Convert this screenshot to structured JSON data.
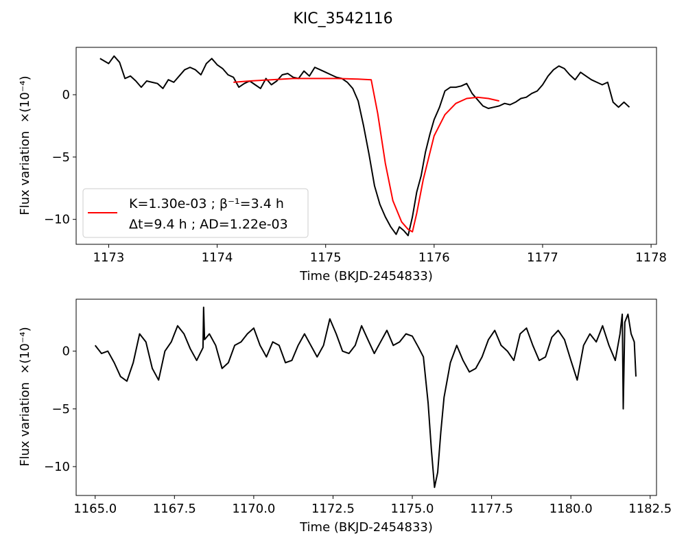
{
  "chart_data": [
    {
      "type": "line",
      "title": "KIC_3542116",
      "xlabel": "Time (BKJD-2454833)",
      "ylabel": "Flux variation",
      "ylabel_unit": "×(10⁻⁴)",
      "xlim": [
        1172.7,
        1178.05
      ],
      "ylim": [
        -12,
        3.8
      ],
      "xticks": [
        1173,
        1174,
        1175,
        1176,
        1177,
        1178
      ],
      "xtick_labels": [
        "1173",
        "1174",
        "1175",
        "1176",
        "1177",
        "1178"
      ],
      "yticks": [
        0,
        -5,
        -10
      ],
      "ytick_labels": [
        "0",
        "−5",
        "−10"
      ],
      "grid": false,
      "legend": {
        "placement": "lower-left",
        "line1": "K=1.30e-03 ; β⁻¹=3.4 h",
        "line2": "Δt=9.4 h ; AD=1.22e-03"
      },
      "series": [
        {
          "color": "#000000",
          "x": [
            1172.92,
            1173.0,
            1173.05,
            1173.1,
            1173.15,
            1173.2,
            1173.25,
            1173.3,
            1173.35,
            1173.4,
            1173.45,
            1173.5,
            1173.55,
            1173.6,
            1173.65,
            1173.7,
            1173.75,
            1173.8,
            1173.85,
            1173.9,
            1173.95,
            1174.0,
            1174.05,
            1174.1,
            1174.15,
            1174.2,
            1174.25,
            1174.3,
            1174.35,
            1174.4,
            1174.45,
            1174.5,
            1174.55,
            1174.6,
            1174.65,
            1174.7,
            1174.75,
            1174.8,
            1174.85,
            1174.9,
            1174.95,
            1175.0,
            1175.05,
            1175.1,
            1175.15,
            1175.2,
            1175.25,
            1175.3,
            1175.35,
            1175.4,
            1175.45,
            1175.5,
            1175.55,
            1175.6,
            1175.65,
            1175.68,
            1175.72,
            1175.76,
            1175.8,
            1175.84,
            1175.88,
            1175.92,
            1175.96,
            1176.0,
            1176.05,
            1176.1,
            1176.15,
            1176.2,
            1176.25,
            1176.3,
            1176.35,
            1176.4,
            1176.45,
            1176.5,
            1176.55,
            1176.6,
            1176.65,
            1176.7,
            1176.75,
            1176.8,
            1176.85,
            1176.9,
            1176.95,
            1177.0,
            1177.05,
            1177.1,
            1177.15,
            1177.2,
            1177.25,
            1177.3,
            1177.35,
            1177.4,
            1177.45,
            1177.5,
            1177.55,
            1177.6,
            1177.65,
            1177.7,
            1177.75,
            1177.8
          ],
          "y": [
            2.9,
            2.5,
            3.1,
            2.6,
            1.3,
            1.5,
            1.1,
            0.6,
            1.1,
            1.0,
            0.9,
            0.5,
            1.2,
            1.0,
            1.5,
            2.0,
            2.2,
            2.0,
            1.6,
            2.5,
            2.9,
            2.4,
            2.1,
            1.6,
            1.4,
            0.6,
            0.9,
            1.1,
            0.8,
            0.5,
            1.3,
            0.8,
            1.1,
            1.6,
            1.7,
            1.4,
            1.3,
            1.9,
            1.5,
            2.2,
            2.0,
            1.8,
            1.6,
            1.4,
            1.3,
            1.0,
            0.5,
            -0.5,
            -2.5,
            -4.8,
            -7.3,
            -8.8,
            -9.8,
            -10.6,
            -11.2,
            -10.6,
            -10.9,
            -11.3,
            -9.8,
            -7.8,
            -6.5,
            -4.6,
            -3.2,
            -2.0,
            -1.0,
            0.3,
            0.6,
            0.6,
            0.7,
            0.9,
            0.1,
            -0.4,
            -0.9,
            -1.1,
            -1.0,
            -0.9,
            -0.7,
            -0.8,
            -0.6,
            -0.3,
            -0.2,
            0.1,
            0.3,
            0.8,
            1.5,
            2.0,
            2.3,
            2.1,
            1.6,
            1.2,
            1.8,
            1.5,
            1.2,
            1.0,
            0.8,
            1.0,
            -0.6,
            -1.0,
            -0.6,
            -1.0
          ]
        },
        {
          "color": "#ff0000",
          "x": [
            1174.15,
            1174.3,
            1174.5,
            1174.7,
            1174.9,
            1175.1,
            1175.3,
            1175.42,
            1175.48,
            1175.55,
            1175.62,
            1175.7,
            1175.76,
            1175.8,
            1175.84,
            1175.9,
            1176.0,
            1176.1,
            1176.2,
            1176.3,
            1176.4,
            1176.5,
            1176.6
          ],
          "y": [
            1.0,
            1.1,
            1.2,
            1.3,
            1.3,
            1.3,
            1.25,
            1.2,
            -1.5,
            -5.5,
            -8.5,
            -10.2,
            -10.8,
            -11.0,
            -9.5,
            -6.8,
            -3.3,
            -1.6,
            -0.7,
            -0.3,
            -0.2,
            -0.3,
            -0.5
          ]
        }
      ]
    },
    {
      "type": "line",
      "xlabel": "Time (BKJD-2454833)",
      "ylabel": "Flux variation",
      "ylabel_unit": "×(10⁻⁴)",
      "xlim": [
        1164.4,
        1182.7
      ],
      "ylim": [
        -12.5,
        4.5
      ],
      "xticks": [
        1165.0,
        1167.5,
        1170.0,
        1172.5,
        1175.0,
        1177.5,
        1180.0,
        1182.5
      ],
      "xtick_labels": [
        "1165.0",
        "1167.5",
        "1170.0",
        "1172.5",
        "1175.0",
        "1177.5",
        "1180.0",
        "1182.5"
      ],
      "yticks": [
        0,
        -5,
        -10
      ],
      "ytick_labels": [
        "0",
        "−5",
        "−10"
      ],
      "grid": false,
      "series": [
        {
          "color": "#000000",
          "x": [
            1165.0,
            1165.2,
            1165.4,
            1165.6,
            1165.8,
            1166.0,
            1166.2,
            1166.4,
            1166.6,
            1166.8,
            1167.0,
            1167.2,
            1167.4,
            1167.6,
            1167.8,
            1168.0,
            1168.2,
            1168.4,
            1168.42,
            1168.45,
            1168.6,
            1168.8,
            1169.0,
            1169.2,
            1169.4,
            1169.6,
            1169.8,
            1170.0,
            1170.2,
            1170.4,
            1170.6,
            1170.8,
            1171.0,
            1171.2,
            1171.4,
            1171.6,
            1171.8,
            1172.0,
            1172.2,
            1172.4,
            1172.6,
            1172.8,
            1173.0,
            1173.2,
            1173.4,
            1173.6,
            1173.8,
            1174.0,
            1174.2,
            1174.4,
            1174.6,
            1174.8,
            1175.0,
            1175.2,
            1175.35,
            1175.5,
            1175.6,
            1175.7,
            1175.8,
            1175.9,
            1176.0,
            1176.1,
            1176.2,
            1176.4,
            1176.6,
            1176.8,
            1177.0,
            1177.2,
            1177.4,
            1177.6,
            1177.8,
            1178.0,
            1178.2,
            1178.4,
            1178.6,
            1178.8,
            1179.0,
            1179.2,
            1179.4,
            1179.6,
            1179.8,
            1180.0,
            1180.2,
            1180.4,
            1180.6,
            1180.8,
            1181.0,
            1181.2,
            1181.4,
            1181.55,
            1181.62,
            1181.65,
            1181.7,
            1181.8,
            1181.9,
            1182.0,
            1182.05
          ],
          "y": [
            0.5,
            -0.2,
            0.0,
            -1.0,
            -2.2,
            -2.6,
            -1.0,
            1.5,
            0.8,
            -1.5,
            -2.5,
            0.0,
            0.8,
            2.2,
            1.5,
            0.2,
            -0.8,
            0.3,
            3.8,
            1.0,
            1.5,
            0.5,
            -1.5,
            -1.0,
            0.5,
            0.8,
            1.5,
            2.0,
            0.5,
            -0.5,
            0.8,
            0.5,
            -1.0,
            -0.8,
            0.5,
            1.5,
            0.5,
            -0.5,
            0.5,
            2.8,
            1.5,
            0.0,
            -0.2,
            0.5,
            2.2,
            1.0,
            -0.2,
            0.8,
            1.8,
            0.5,
            0.8,
            1.5,
            1.3,
            0.3,
            -0.5,
            -4.5,
            -8.5,
            -11.8,
            -10.5,
            -7.0,
            -4.0,
            -2.5,
            -1.0,
            0.5,
            -0.8,
            -1.8,
            -1.5,
            -0.5,
            1.0,
            1.8,
            0.5,
            0.0,
            -0.8,
            1.5,
            2.0,
            0.5,
            -0.8,
            -0.5,
            1.2,
            1.8,
            1.0,
            -0.8,
            -2.5,
            0.5,
            1.5,
            0.8,
            2.2,
            0.5,
            -0.8,
            1.5,
            3.2,
            -5.0,
            2.5,
            3.2,
            1.5,
            0.8,
            -2.2
          ]
        }
      ]
    }
  ]
}
